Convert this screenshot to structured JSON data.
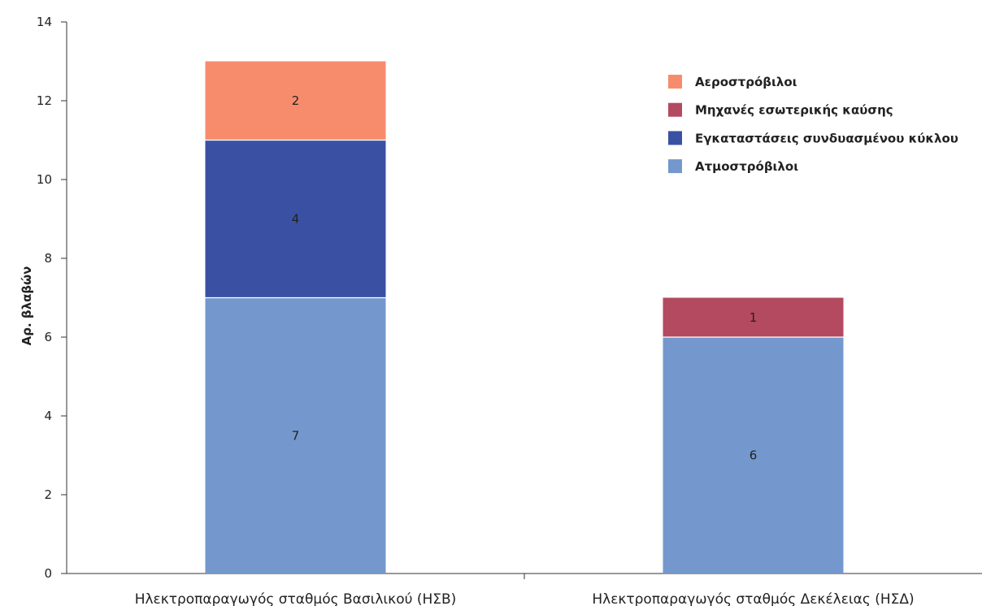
{
  "chart_data": {
    "type": "bar",
    "stacked": true,
    "categories": [
      "Ηλεκτροπαραγωγός σταθμός Βασιλικού (ΗΣΒ)",
      "Ηλεκτροπαραγωγός σταθμός Δεκέλειας (ΗΣΔ)"
    ],
    "series": [
      {
        "name": "Ατμοστρόβιλοι",
        "values": [
          7,
          6
        ],
        "color": "#7498cd"
      },
      {
        "name": "Εγκαταστάσεις συνδυασμένου κύκλου",
        "values": [
          4,
          0
        ],
        "color": "#3a51a3"
      },
      {
        "name": "Μηχανές εσωτερικής καύσης",
        "values": [
          0,
          1
        ],
        "color": "#b44a5f"
      },
      {
        "name": "Αεροστρόβιλοι",
        "values": [
          2,
          0
        ],
        "color": "#f78c6c"
      }
    ],
    "legend_order": [
      "Αεροστρόβιλοι",
      "Μηχανές εσωτερικής καύσης",
      "Εγκαταστάσεις συνδυασμένου κύκλου",
      "Ατμοστρόβιλοι"
    ],
    "title": "",
    "xlabel": "",
    "ylabel": "Αρ. βλαβών",
    "ylim": [
      0,
      14
    ],
    "yticks": [
      0,
      2,
      4,
      6,
      8,
      10,
      12,
      14
    ],
    "grid": false,
    "legend_position": "top-right"
  }
}
